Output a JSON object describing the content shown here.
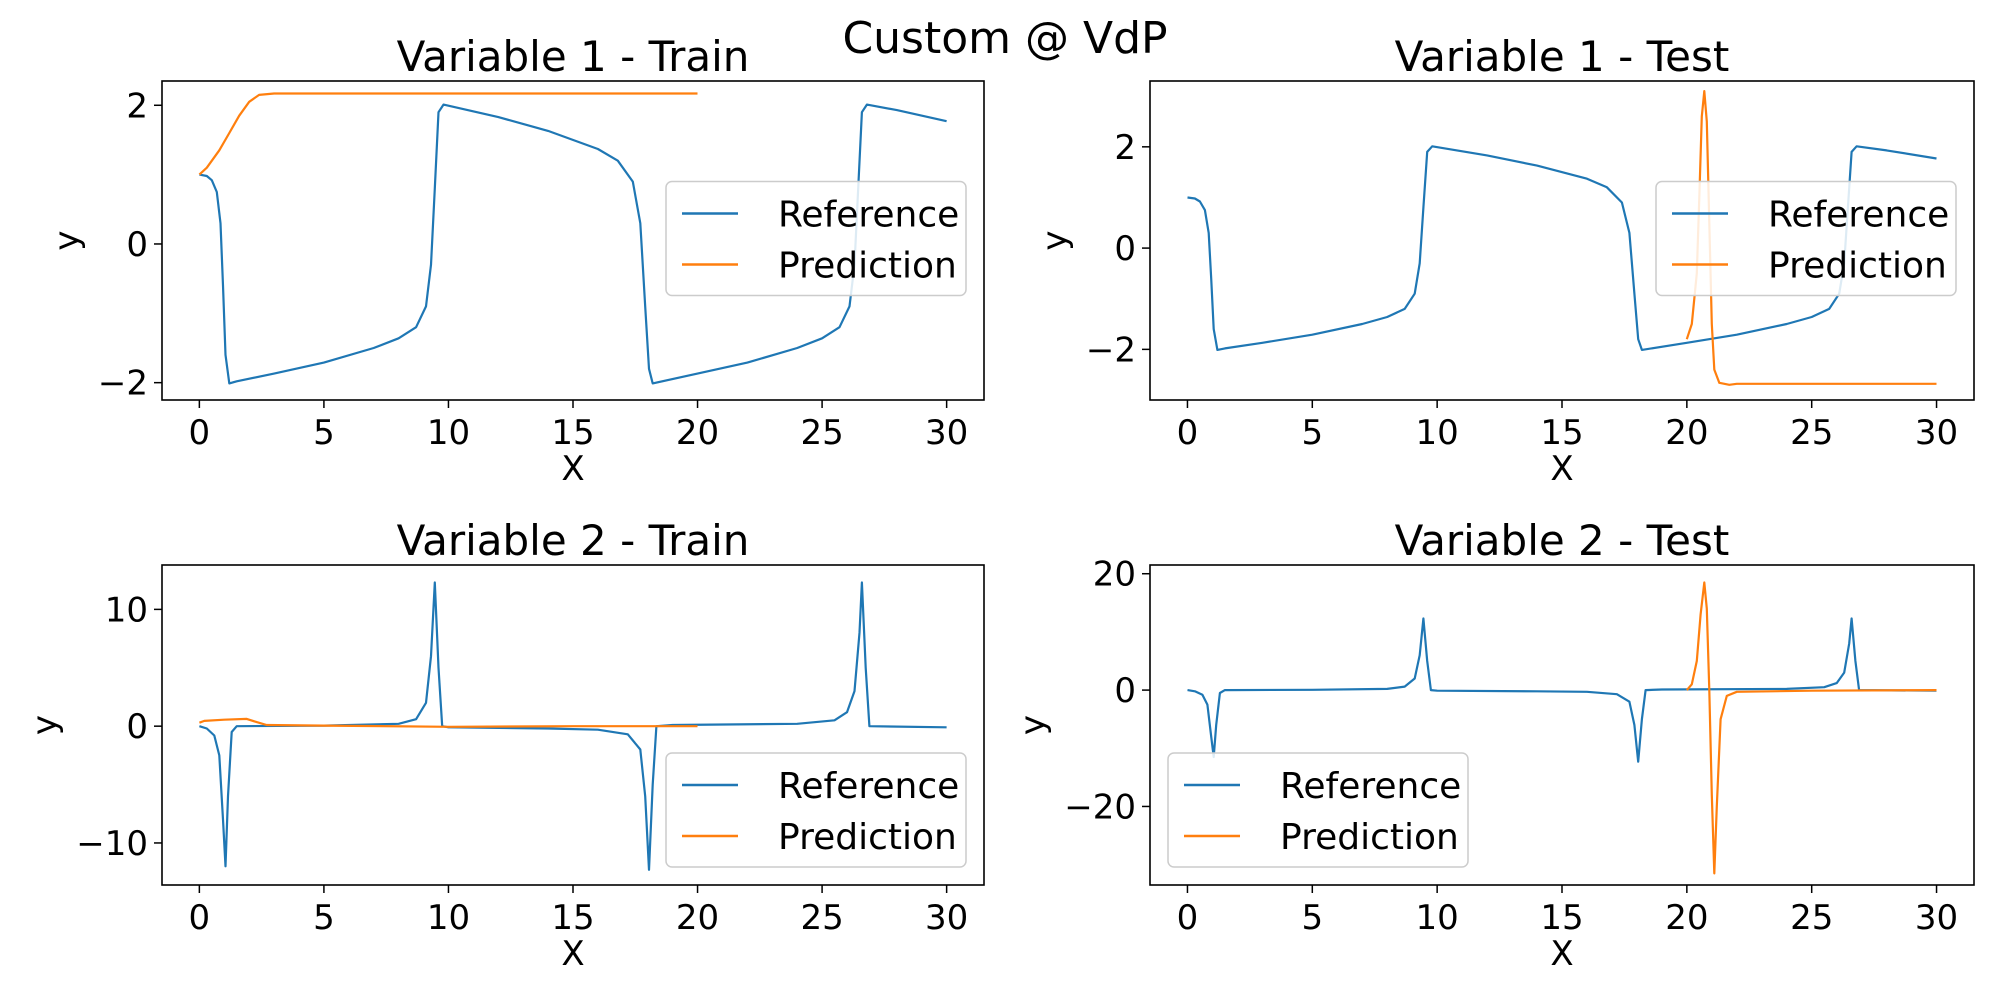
{
  "figure": {
    "title": "Custom @ VdP"
  },
  "colors": {
    "reference": "#1f77b4",
    "prediction": "#ff7f0e",
    "axes": "#000000",
    "legend_border": "#cccccc"
  },
  "chart_data": [
    {
      "type": "line",
      "title": "Variable 1 - Train",
      "xlabel": "X",
      "ylabel": "y",
      "xlim": [
        -1.5,
        31.5
      ],
      "ylim": [
        -2.25,
        2.35
      ],
      "xticks": [
        0,
        5,
        10,
        15,
        20,
        25,
        30
      ],
      "yticks": [
        -2,
        0,
        2
      ],
      "legend": "center-right",
      "series": [
        {
          "name": "Reference",
          "color": "#1f77b4",
          "points": [
            [
              0,
              1.0
            ],
            [
              0.3,
              0.98
            ],
            [
              0.5,
              0.92
            ],
            [
              0.7,
              0.75
            ],
            [
              0.85,
              0.3
            ],
            [
              0.95,
              -0.6
            ],
            [
              1.05,
              -1.6
            ],
            [
              1.2,
              -2.01
            ],
            [
              1.5,
              -1.98
            ],
            [
              3,
              -1.87
            ],
            [
              5,
              -1.71
            ],
            [
              7,
              -1.5
            ],
            [
              8,
              -1.36
            ],
            [
              8.7,
              -1.2
            ],
            [
              9.1,
              -0.9
            ],
            [
              9.3,
              -0.3
            ],
            [
              9.45,
              0.8
            ],
            [
              9.6,
              1.9
            ],
            [
              9.8,
              2.01
            ],
            [
              12,
              1.83
            ],
            [
              14,
              1.63
            ],
            [
              16,
              1.37
            ],
            [
              16.8,
              1.2
            ],
            [
              17.4,
              0.9
            ],
            [
              17.7,
              0.3
            ],
            [
              17.9,
              -0.9
            ],
            [
              18.05,
              -1.8
            ],
            [
              18.2,
              -2.01
            ],
            [
              20,
              -1.87
            ],
            [
              22,
              -1.71
            ],
            [
              24,
              -1.5
            ],
            [
              25,
              -1.36
            ],
            [
              25.7,
              -1.2
            ],
            [
              26.1,
              -0.9
            ],
            [
              26.3,
              -0.3
            ],
            [
              26.45,
              0.8
            ],
            [
              26.6,
              1.9
            ],
            [
              26.8,
              2.01
            ],
            [
              28,
              1.93
            ],
            [
              30,
              1.77
            ]
          ]
        },
        {
          "name": "Prediction",
          "color": "#ff7f0e",
          "points": [
            [
              0,
              1.0
            ],
            [
              0.3,
              1.1
            ],
            [
              0.8,
              1.35
            ],
            [
              1.2,
              1.6
            ],
            [
              1.6,
              1.85
            ],
            [
              2.0,
              2.05
            ],
            [
              2.4,
              2.15
            ],
            [
              3,
              2.17
            ],
            [
              10,
              2.17
            ],
            [
              20,
              2.17
            ]
          ]
        }
      ]
    },
    {
      "type": "line",
      "title": "Variable 1 - Test",
      "xlabel": "X",
      "ylabel": "y",
      "xlim": [
        -1.5,
        31.5
      ],
      "ylim": [
        -3.0,
        3.3
      ],
      "xticks": [
        0,
        5,
        10,
        15,
        20,
        25,
        30
      ],
      "yticks": [
        -2,
        0,
        2
      ],
      "legend": "center-right",
      "series": [
        {
          "name": "Reference",
          "color": "#1f77b4",
          "points": [
            [
              0,
              1.0
            ],
            [
              0.3,
              0.98
            ],
            [
              0.5,
              0.92
            ],
            [
              0.7,
              0.75
            ],
            [
              0.85,
              0.3
            ],
            [
              0.95,
              -0.6
            ],
            [
              1.05,
              -1.6
            ],
            [
              1.2,
              -2.01
            ],
            [
              1.5,
              -1.98
            ],
            [
              3,
              -1.87
            ],
            [
              5,
              -1.71
            ],
            [
              7,
              -1.5
            ],
            [
              8,
              -1.36
            ],
            [
              8.7,
              -1.2
            ],
            [
              9.1,
              -0.9
            ],
            [
              9.3,
              -0.3
            ],
            [
              9.45,
              0.8
            ],
            [
              9.6,
              1.9
            ],
            [
              9.8,
              2.01
            ],
            [
              12,
              1.83
            ],
            [
              14,
              1.63
            ],
            [
              16,
              1.37
            ],
            [
              16.8,
              1.2
            ],
            [
              17.4,
              0.9
            ],
            [
              17.7,
              0.3
            ],
            [
              17.9,
              -0.9
            ],
            [
              18.05,
              -1.8
            ],
            [
              18.2,
              -2.01
            ],
            [
              20,
              -1.87
            ],
            [
              22,
              -1.71
            ],
            [
              24,
              -1.5
            ],
            [
              25,
              -1.36
            ],
            [
              25.7,
              -1.2
            ],
            [
              26.1,
              -0.9
            ],
            [
              26.3,
              -0.3
            ],
            [
              26.45,
              0.8
            ],
            [
              26.6,
              1.9
            ],
            [
              26.8,
              2.01
            ],
            [
              28,
              1.93
            ],
            [
              30,
              1.77
            ]
          ]
        },
        {
          "name": "Prediction",
          "color": "#ff7f0e",
          "points": [
            [
              20,
              -1.8
            ],
            [
              20.2,
              -1.5
            ],
            [
              20.4,
              -0.5
            ],
            [
              20.5,
              1.0
            ],
            [
              20.6,
              2.6
            ],
            [
              20.7,
              3.1
            ],
            [
              20.8,
              2.5
            ],
            [
              20.9,
              0.5
            ],
            [
              21.0,
              -1.5
            ],
            [
              21.1,
              -2.4
            ],
            [
              21.3,
              -2.66
            ],
            [
              21.7,
              -2.7
            ],
            [
              22,
              -2.68
            ],
            [
              25,
              -2.68
            ],
            [
              30,
              -2.68
            ]
          ]
        }
      ]
    },
    {
      "type": "line",
      "title": "Variable 2 - Train",
      "xlabel": "X",
      "ylabel": "y",
      "xlim": [
        -1.5,
        31.5
      ],
      "ylim": [
        -13.6,
        13.8
      ],
      "xticks": [
        0,
        5,
        10,
        15,
        20,
        25,
        30
      ],
      "yticks": [
        -10,
        0,
        10
      ],
      "legend": "lower-right",
      "series": [
        {
          "name": "Reference",
          "color": "#1f77b4",
          "points": [
            [
              0,
              0
            ],
            [
              0.3,
              -0.2
            ],
            [
              0.6,
              -0.8
            ],
            [
              0.8,
              -2.5
            ],
            [
              0.95,
              -8
            ],
            [
              1.05,
              -12
            ],
            [
              1.15,
              -6
            ],
            [
              1.3,
              -0.5
            ],
            [
              1.5,
              0
            ],
            [
              5,
              0.05
            ],
            [
              8,
              0.2
            ],
            [
              8.7,
              0.6
            ],
            [
              9.1,
              2
            ],
            [
              9.3,
              6
            ],
            [
              9.45,
              12.3
            ],
            [
              9.6,
              5
            ],
            [
              9.75,
              0
            ],
            [
              10,
              -0.1
            ],
            [
              14,
              -0.2
            ],
            [
              16,
              -0.3
            ],
            [
              17.2,
              -0.7
            ],
            [
              17.7,
              -2
            ],
            [
              17.9,
              -6
            ],
            [
              18.05,
              -12.3
            ],
            [
              18.2,
              -5
            ],
            [
              18.35,
              0
            ],
            [
              19,
              0.1
            ],
            [
              24,
              0.2
            ],
            [
              25.5,
              0.5
            ],
            [
              26,
              1.2
            ],
            [
              26.3,
              3
            ],
            [
              26.5,
              8
            ],
            [
              26.6,
              12.3
            ],
            [
              26.75,
              5
            ],
            [
              26.9,
              0
            ],
            [
              30,
              -0.1
            ]
          ]
        },
        {
          "name": "Prediction",
          "color": "#ff7f0e",
          "points": [
            [
              0,
              0.3
            ],
            [
              0.2,
              0.45
            ],
            [
              1,
              0.55
            ],
            [
              1.9,
              0.62
            ],
            [
              2.3,
              0.35
            ],
            [
              2.7,
              0.1
            ],
            [
              5,
              0.05
            ],
            [
              10,
              -0.05
            ],
            [
              15,
              0
            ],
            [
              20,
              0
            ]
          ]
        }
      ]
    },
    {
      "type": "line",
      "title": "Variable 2 - Test",
      "xlabel": "X",
      "ylabel": "y",
      "xlim": [
        -1.5,
        31.5
      ],
      "ylim": [
        -33.5,
        21.5
      ],
      "xticks": [
        0,
        5,
        10,
        15,
        20,
        25,
        30
      ],
      "yticks": [
        -20,
        0,
        20
      ],
      "legend": "lower-left",
      "series": [
        {
          "name": "Reference",
          "color": "#1f77b4",
          "points": [
            [
              0,
              0
            ],
            [
              0.3,
              -0.2
            ],
            [
              0.6,
              -0.8
            ],
            [
              0.8,
              -2.5
            ],
            [
              0.95,
              -8
            ],
            [
              1.05,
              -11.5
            ],
            [
              1.15,
              -6
            ],
            [
              1.3,
              -0.5
            ],
            [
              1.5,
              0
            ],
            [
              5,
              0.05
            ],
            [
              8,
              0.2
            ],
            [
              8.7,
              0.6
            ],
            [
              9.1,
              2
            ],
            [
              9.3,
              6
            ],
            [
              9.45,
              12.3
            ],
            [
              9.6,
              5
            ],
            [
              9.75,
              0
            ],
            [
              10,
              -0.1
            ],
            [
              14,
              -0.2
            ],
            [
              16,
              -0.3
            ],
            [
              17.2,
              -0.7
            ],
            [
              17.7,
              -2
            ],
            [
              17.9,
              -6
            ],
            [
              18.05,
              -12.3
            ],
            [
              18.2,
              -5
            ],
            [
              18.35,
              0
            ],
            [
              19,
              0.1
            ],
            [
              24,
              0.2
            ],
            [
              25.5,
              0.5
            ],
            [
              26,
              1.2
            ],
            [
              26.3,
              3
            ],
            [
              26.5,
              8
            ],
            [
              26.6,
              12.3
            ],
            [
              26.75,
              5
            ],
            [
              26.9,
              0
            ],
            [
              30,
              -0.1
            ]
          ]
        },
        {
          "name": "Prediction",
          "color": "#ff7f0e",
          "points": [
            [
              20,
              0
            ],
            [
              20.2,
              1
            ],
            [
              20.4,
              5
            ],
            [
              20.55,
              13
            ],
            [
              20.7,
              18.5
            ],
            [
              20.8,
              14
            ],
            [
              20.9,
              0
            ],
            [
              21.0,
              -18
            ],
            [
              21.1,
              -31.5
            ],
            [
              21.2,
              -20
            ],
            [
              21.35,
              -5
            ],
            [
              21.6,
              -1
            ],
            [
              22,
              -0.3
            ],
            [
              25,
              -0.1
            ],
            [
              30,
              0
            ]
          ]
        }
      ]
    }
  ]
}
